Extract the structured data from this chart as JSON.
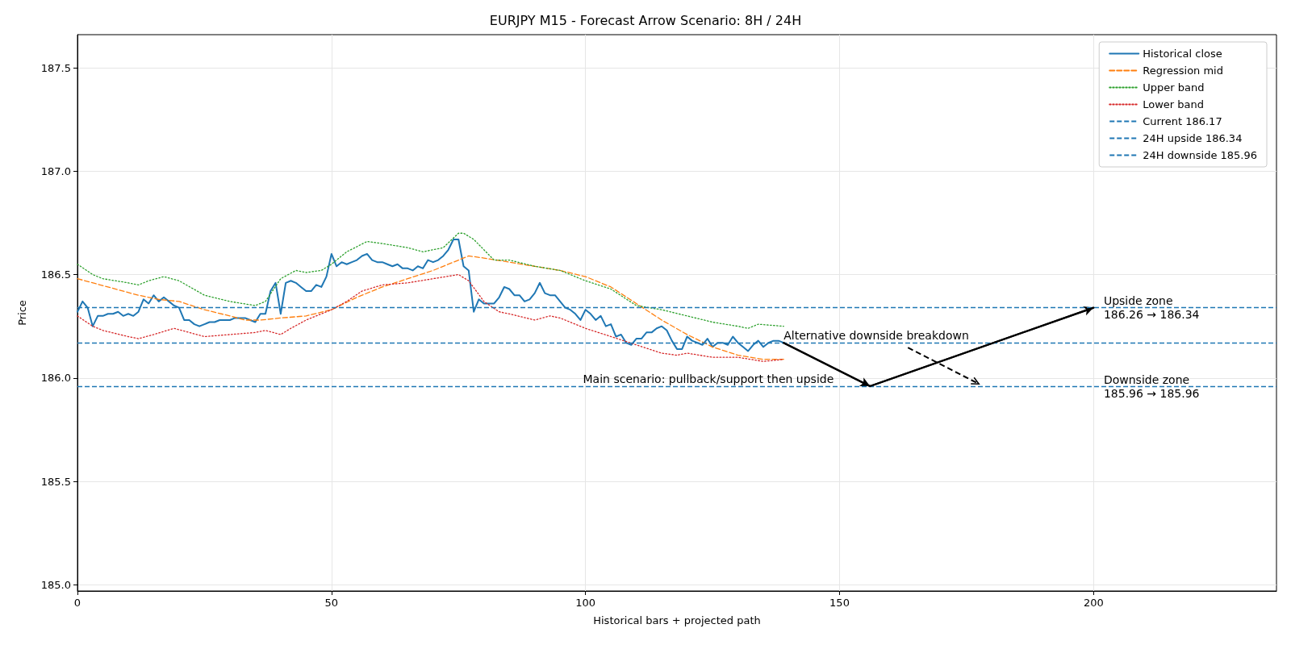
{
  "chart_data": {
    "type": "line",
    "title": "EURJPY M15 - Forecast Arrow Scenario: 8H / 24H",
    "xlabel": "Historical bars + projected path",
    "ylabel": "Price",
    "xlim": [
      0,
      236
    ],
    "xticks": [
      0,
      50,
      100,
      150,
      200
    ],
    "ylim": [
      184.97,
      187.66
    ],
    "yticks": [
      {
        "value": 185.0,
        "label": "185.0"
      },
      {
        "value": 185.5,
        "label": "185.5"
      },
      {
        "value": 186.0,
        "label": "186.0"
      },
      {
        "value": 186.5,
        "label": "186.5"
      },
      {
        "value": 187.0,
        "label": "187.0"
      },
      {
        "value": 187.5,
        "label": "187.5"
      }
    ],
    "grid": true,
    "legend": "top right",
    "marker": "none",
    "series": [
      {
        "name": "Historical close",
        "color": "#1f77b4",
        "line_style": "solid",
        "x": [
          0,
          1,
          2,
          3,
          4,
          5,
          6,
          7,
          8,
          9,
          10,
          11,
          12,
          13,
          14,
          15,
          16,
          17,
          18,
          19,
          20,
          21,
          22,
          23,
          24,
          25,
          26,
          27,
          28,
          29,
          30,
          31,
          32,
          33,
          34,
          35,
          36,
          37,
          38,
          39,
          40,
          41,
          42,
          43,
          44,
          45,
          46,
          47,
          48,
          49,
          50,
          51,
          52,
          53,
          54,
          55,
          56,
          57,
          58,
          59,
          60,
          61,
          62,
          63,
          64,
          65,
          66,
          67,
          68,
          69,
          70,
          71,
          72,
          73,
          74,
          75,
          76,
          77,
          78,
          79,
          80,
          81,
          82,
          83,
          84,
          85,
          86,
          87,
          88,
          89,
          90,
          91,
          92,
          93,
          94,
          95,
          96,
          97,
          98,
          99,
          100,
          101,
          102,
          103,
          104,
          105,
          106,
          107,
          108,
          109,
          110,
          111,
          112,
          113,
          114,
          115,
          116,
          117,
          118,
          119,
          120,
          121,
          122,
          123,
          124,
          125,
          126,
          127,
          128,
          129,
          130,
          131,
          132,
          133,
          134,
          135,
          136,
          137,
          138,
          139
        ],
        "values": [
          186.32,
          186.37,
          186.34,
          186.25,
          186.3,
          186.3,
          186.31,
          186.31,
          186.32,
          186.3,
          186.31,
          186.3,
          186.32,
          186.38,
          186.36,
          186.4,
          186.37,
          186.39,
          186.37,
          186.35,
          186.34,
          186.28,
          186.28,
          186.26,
          186.25,
          186.26,
          186.27,
          186.27,
          186.28,
          186.28,
          186.28,
          186.29,
          186.29,
          186.29,
          186.28,
          186.27,
          186.31,
          186.31,
          186.42,
          186.46,
          186.31,
          186.46,
          186.47,
          186.46,
          186.44,
          186.42,
          186.42,
          186.45,
          186.44,
          186.49,
          186.6,
          186.54,
          186.56,
          186.55,
          186.56,
          186.57,
          186.59,
          186.6,
          186.57,
          186.56,
          186.56,
          186.55,
          186.54,
          186.55,
          186.53,
          186.53,
          186.52,
          186.54,
          186.53,
          186.57,
          186.56,
          186.57,
          186.59,
          186.62,
          186.67,
          186.67,
          186.54,
          186.52,
          186.32,
          186.38,
          186.36,
          186.36,
          186.36,
          186.39,
          186.44,
          186.43,
          186.4,
          186.4,
          186.37,
          186.38,
          186.41,
          186.46,
          186.41,
          186.4,
          186.4,
          186.37,
          186.34,
          186.33,
          186.31,
          186.28,
          186.33,
          186.31,
          186.28,
          186.3,
          186.25,
          186.26,
          186.2,
          186.21,
          186.17,
          186.16,
          186.19,
          186.19,
          186.22,
          186.22,
          186.24,
          186.25,
          186.23,
          186.18,
          186.14,
          186.14,
          186.2,
          186.18,
          186.17,
          186.16,
          186.19,
          186.15,
          186.17,
          186.17,
          186.16,
          186.2,
          186.17,
          186.15,
          186.13,
          186.16,
          186.18,
          186.15,
          186.17,
          186.18,
          186.18,
          186.17
        ]
      },
      {
        "name": "Regression mid",
        "color": "#ff7f0e",
        "line_style": "dashed",
        "x": [
          0,
          12,
          16,
          20,
          25,
          30,
          33,
          36,
          40,
          45,
          50,
          55,
          60,
          65,
          70,
          74,
          77,
          80,
          85,
          90,
          95,
          100,
          105,
          110,
          115,
          120,
          125,
          130,
          135,
          139
        ],
        "values": [
          186.48,
          186.4,
          186.38,
          186.37,
          186.33,
          186.3,
          186.28,
          186.28,
          186.29,
          186.3,
          186.33,
          186.39,
          186.44,
          186.48,
          186.52,
          186.56,
          186.59,
          186.58,
          186.56,
          186.54,
          186.52,
          186.49,
          186.44,
          186.36,
          186.28,
          186.21,
          186.15,
          186.11,
          186.09,
          186.09
        ]
      },
      {
        "name": "Upper band",
        "color": "#2ca02c",
        "line_style": "dotted",
        "x": [
          0,
          3,
          5,
          10,
          12,
          14,
          17,
          20,
          25,
          30,
          35,
          37,
          40,
          43,
          45,
          48,
          50,
          53,
          57,
          60,
          65,
          68,
          72,
          75,
          76,
          78,
          80,
          82,
          85,
          90,
          95,
          100,
          105,
          110,
          115,
          120,
          125,
          130,
          132,
          134,
          139
        ],
        "values": [
          186.55,
          186.5,
          186.48,
          186.46,
          186.45,
          186.47,
          186.49,
          186.47,
          186.4,
          186.37,
          186.35,
          186.37,
          186.48,
          186.52,
          186.51,
          186.52,
          186.55,
          186.61,
          186.66,
          186.65,
          186.63,
          186.61,
          186.63,
          186.7,
          186.7,
          186.67,
          186.62,
          186.57,
          186.57,
          186.54,
          186.52,
          186.47,
          186.43,
          186.35,
          186.33,
          186.3,
          186.27,
          186.25,
          186.24,
          186.26,
          186.25
        ]
      },
      {
        "name": "Lower band",
        "color": "#d62728",
        "line_style": "dotted",
        "x": [
          0,
          3,
          5,
          10,
          12,
          15,
          19,
          25,
          30,
          35,
          37,
          40,
          42,
          45,
          50,
          53,
          56,
          60,
          65,
          70,
          75,
          77,
          80,
          83,
          85,
          90,
          93,
          95,
          100,
          105,
          110,
          115,
          118,
          120,
          125,
          130,
          135,
          139
        ],
        "values": [
          186.3,
          186.25,
          186.23,
          186.2,
          186.19,
          186.21,
          186.24,
          186.2,
          186.21,
          186.22,
          186.23,
          186.21,
          186.24,
          186.28,
          186.33,
          186.37,
          186.42,
          186.45,
          186.46,
          186.48,
          186.5,
          186.47,
          186.37,
          186.32,
          186.31,
          186.28,
          186.3,
          186.29,
          186.24,
          186.2,
          186.16,
          186.12,
          186.11,
          186.12,
          186.1,
          186.1,
          186.08,
          186.09
        ]
      },
      {
        "color": "#000000",
        "line_style": "solid",
        "x": [
          139,
          156,
          200
        ],
        "values": [
          186.17,
          185.96,
          186.34
        ]
      }
    ],
    "ref_lines": [
      {
        "axis": "y",
        "value": 186.17,
        "label": "Current 186.17",
        "color": "#1f77b4",
        "line_style": "dashed"
      },
      {
        "axis": "y",
        "value": 186.34,
        "label": "24H upside 186.34",
        "color": "#1f77b4",
        "line_style": "dashed"
      },
      {
        "axis": "y",
        "value": 185.96,
        "label": "24H downside 185.96",
        "color": "#1f77b4",
        "line_style": "dashed"
      }
    ],
    "annotations": [
      {
        "text": "Alternative downside breakdown",
        "x": 139,
        "y": 186.17
      },
      {
        "text": "Main scenario: pullback/support then upside",
        "x": 99.5,
        "y": 185.96
      },
      {
        "text": "Upside zone\n186.26 → 186.34",
        "x": 202,
        "y": 186.34
      },
      {
        "text": "Downside zone\n185.96 → 185.96",
        "x": 202,
        "y": 185.96
      }
    ]
  }
}
